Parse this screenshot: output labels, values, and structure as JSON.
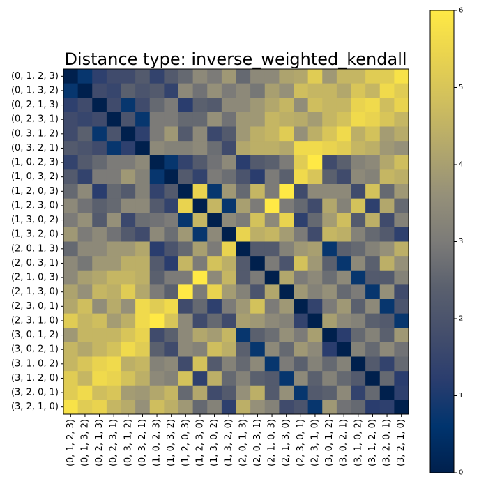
{
  "chart_data": {
    "type": "heatmap",
    "title": "Distance type: inverse_weighted_kendall",
    "xlabel": "",
    "ylabel": "",
    "labels": [
      "(0, 1, 2, 3)",
      "(0, 1, 3, 2)",
      "(0, 2, 1, 3)",
      "(0, 2, 3, 1)",
      "(0, 3, 1, 2)",
      "(0, 3, 2, 1)",
      "(1, 0, 2, 3)",
      "(1, 0, 3, 2)",
      "(1, 2, 0, 3)",
      "(1, 2, 3, 0)",
      "(1, 3, 0, 2)",
      "(1, 3, 2, 0)",
      "(2, 0, 1, 3)",
      "(2, 0, 3, 1)",
      "(2, 1, 0, 3)",
      "(2, 1, 3, 0)",
      "(2, 3, 0, 1)",
      "(2, 3, 1, 0)",
      "(3, 0, 1, 2)",
      "(3, 0, 2, 1)",
      "(3, 1, 0, 2)",
      "(3, 1, 2, 0)",
      "(3, 2, 0, 1)",
      "(3, 2, 1, 0)"
    ],
    "colormap": "cividis",
    "colorbar": {
      "min": 0,
      "max": 6,
      "ticks": [
        0,
        1,
        2,
        3,
        4,
        5,
        6
      ]
    },
    "values": [
      [
        0.0,
        0.7,
        1.3,
        1.7,
        1.7,
        2.2,
        1.4,
        2.2,
        2.6,
        3.4,
        3.0,
        3.8,
        2.6,
        3.4,
        3.4,
        4.1,
        4.2,
        5.2,
        3.8,
        4.6,
        4.6,
        5.2,
        5.2,
        5.8
      ],
      [
        0.7,
        0.0,
        1.7,
        1.5,
        2.4,
        2.0,
        2.2,
        1.4,
        3.4,
        2.8,
        3.6,
        3.0,
        3.4,
        2.9,
        4.0,
        3.6,
        4.8,
        4.6,
        4.6,
        4.2,
        5.0,
        4.6,
        5.6,
        5.2
      ],
      [
        1.3,
        1.7,
        0.0,
        1.7,
        0.7,
        1.7,
        2.6,
        3.0,
        1.2,
        2.4,
        2.2,
        3.4,
        3.4,
        3.8,
        4.2,
        4.6,
        3.5,
        4.8,
        4.6,
        4.6,
        5.4,
        5.6,
        4.8,
        5.4
      ],
      [
        1.7,
        1.5,
        1.7,
        0.0,
        2.0,
        0.7,
        3.0,
        3.0,
        2.6,
        2.6,
        3.6,
        2.8,
        3.8,
        3.8,
        4.6,
        4.4,
        4.3,
        3.9,
        4.6,
        4.9,
        5.6,
        5.4,
        5.0,
        4.6
      ],
      [
        1.7,
        2.4,
        0.7,
        2.0,
        0.0,
        1.3,
        3.0,
        3.8,
        2.2,
        3.4,
        1.6,
        2.2,
        3.8,
        4.4,
        4.6,
        5.2,
        3.6,
        4.4,
        5.0,
        5.6,
        4.4,
        4.9,
        3.9,
        4.3
      ],
      [
        2.2,
        2.0,
        1.7,
        0.7,
        1.3,
        0.0,
        3.4,
        3.2,
        3.2,
        3.4,
        2.7,
        1.7,
        4.2,
        4.4,
        4.4,
        4.2,
        5.6,
        5.6,
        5.4,
        5.2,
        4.6,
        4.4,
        3.8,
        3.6
      ],
      [
        1.4,
        2.2,
        2.6,
        3.0,
        3.0,
        3.4,
        0.0,
        0.7,
        1.4,
        2.2,
        2.8,
        3.4,
        1.2,
        2.2,
        2.4,
        3.0,
        5.2,
        6.0,
        1.7,
        2.4,
        3.2,
        3.4,
        4.2,
        4.8
      ],
      [
        2.2,
        1.4,
        3.0,
        3.0,
        3.8,
        3.2,
        0.7,
        0.0,
        2.2,
        1.4,
        3.0,
        2.7,
        2.0,
        1.2,
        3.0,
        2.4,
        5.6,
        5.0,
        2.4,
        1.7,
        3.4,
        3.2,
        4.6,
        4.4
      ],
      [
        2.6,
        3.4,
        1.2,
        2.6,
        2.2,
        3.2,
        1.4,
        2.2,
        0.0,
        5.4,
        0.7,
        3.8,
        2.6,
        4.6,
        3.0,
        6.0,
        1.7,
        3.4,
        3.4,
        3.4,
        1.7,
        4.9,
        2.6,
        3.8
      ],
      [
        3.4,
        2.8,
        2.4,
        2.6,
        3.4,
        3.4,
        2.2,
        1.4,
        5.4,
        0.0,
        4.6,
        0.7,
        4.0,
        3.0,
        6.0,
        3.0,
        2.6,
        1.7,
        4.2,
        3.2,
        4.9,
        1.3,
        4.2,
        2.6
      ],
      [
        3.0,
        3.6,
        2.2,
        3.6,
        1.6,
        2.7,
        2.8,
        3.0,
        0.7,
        4.6,
        0.0,
        3.4,
        3.0,
        4.9,
        3.4,
        5.4,
        1.3,
        2.6,
        3.9,
        4.8,
        2.2,
        4.4,
        1.7,
        3.2
      ],
      [
        3.8,
        3.0,
        3.4,
        2.8,
        2.2,
        1.7,
        3.4,
        2.7,
        3.8,
        0.7,
        3.4,
        0.0,
        5.4,
        4.4,
        4.6,
        3.9,
        3.0,
        1.7,
        4.6,
        4.4,
        3.2,
        2.6,
        2.2,
        1.3
      ],
      [
        2.6,
        3.4,
        3.4,
        3.8,
        3.8,
        4.2,
        1.2,
        2.0,
        2.6,
        4.0,
        3.0,
        5.4,
        0.0,
        2.2,
        2.2,
        3.2,
        3.8,
        4.0,
        0.7,
        2.4,
        2.6,
        3.2,
        3.6,
        4.4
      ],
      [
        3.4,
        2.9,
        3.8,
        3.8,
        4.4,
        4.4,
        2.2,
        1.2,
        4.6,
        3.0,
        4.9,
        4.4,
        2.2,
        0.0,
        3.0,
        2.0,
        4.9,
        3.8,
        2.4,
        0.7,
        3.4,
        2.4,
        4.4,
        3.6
      ],
      [
        3.4,
        4.0,
        4.2,
        4.6,
        4.6,
        4.4,
        2.4,
        3.0,
        3.0,
        6.0,
        3.4,
        4.6,
        2.2,
        3.0,
        0.0,
        4.2,
        3.0,
        3.4,
        2.7,
        3.4,
        0.7,
        2.2,
        2.2,
        3.2
      ],
      [
        4.1,
        3.6,
        4.6,
        4.4,
        5.2,
        4.2,
        3.0,
        2.4,
        6.0,
        3.0,
        5.4,
        3.9,
        3.2,
        2.0,
        4.2,
        0.0,
        3.8,
        3.2,
        3.6,
        2.6,
        3.0,
        0.7,
        3.6,
        1.7
      ],
      [
        4.2,
        4.8,
        3.5,
        4.3,
        3.6,
        5.6,
        5.2,
        5.6,
        1.7,
        2.6,
        1.3,
        3.0,
        3.8,
        4.9,
        3.0,
        3.8,
        0.0,
        1.4,
        3.0,
        3.8,
        2.4,
        3.4,
        0.7,
        2.0
      ],
      [
        5.2,
        4.6,
        4.8,
        3.9,
        4.4,
        5.6,
        6.0,
        5.0,
        3.4,
        1.7,
        2.6,
        1.7,
        4.0,
        3.8,
        3.4,
        3.2,
        1.4,
        0.0,
        4.0,
        3.4,
        3.2,
        2.4,
        2.2,
        0.7
      ],
      [
        3.8,
        4.6,
        4.6,
        4.6,
        5.0,
        5.4,
        1.7,
        2.4,
        3.4,
        4.2,
        3.9,
        4.6,
        0.7,
        2.4,
        2.7,
        3.6,
        3.0,
        4.0,
        0.0,
        1.2,
        2.6,
        3.2,
        2.4,
        3.8
      ],
      [
        4.6,
        4.2,
        4.6,
        4.9,
        5.6,
        5.2,
        2.4,
        1.7,
        3.4,
        3.2,
        4.8,
        4.4,
        2.4,
        0.7,
        3.4,
        2.6,
        3.8,
        3.4,
        1.2,
        0.0,
        3.2,
        2.6,
        3.4,
        2.8
      ],
      [
        4.6,
        5.0,
        5.4,
        5.6,
        4.4,
        4.6,
        3.2,
        3.4,
        1.7,
        4.9,
        2.2,
        3.2,
        2.6,
        3.4,
        0.7,
        3.0,
        2.4,
        3.2,
        2.6,
        3.2,
        0.0,
        2.2,
        1.4,
        2.6
      ],
      [
        5.2,
        4.6,
        5.6,
        5.4,
        4.9,
        4.4,
        3.4,
        3.2,
        4.9,
        1.3,
        4.4,
        2.6,
        3.2,
        2.4,
        2.2,
        0.7,
        3.4,
        2.4,
        3.2,
        2.6,
        2.2,
        0.0,
        2.6,
        1.2
      ],
      [
        5.2,
        5.6,
        4.8,
        5.0,
        3.9,
        3.8,
        4.2,
        4.6,
        2.6,
        4.2,
        1.7,
        2.2,
        3.6,
        4.4,
        2.2,
        3.6,
        0.7,
        2.2,
        2.4,
        3.4,
        1.4,
        2.6,
        0.0,
        1.3
      ],
      [
        5.8,
        5.2,
        5.4,
        4.6,
        4.3,
        3.6,
        4.8,
        4.4,
        3.8,
        2.6,
        3.2,
        1.3,
        4.4,
        3.6,
        3.2,
        1.7,
        2.0,
        0.7,
        3.8,
        2.8,
        2.6,
        1.2,
        1.3,
        0.0
      ]
    ]
  }
}
